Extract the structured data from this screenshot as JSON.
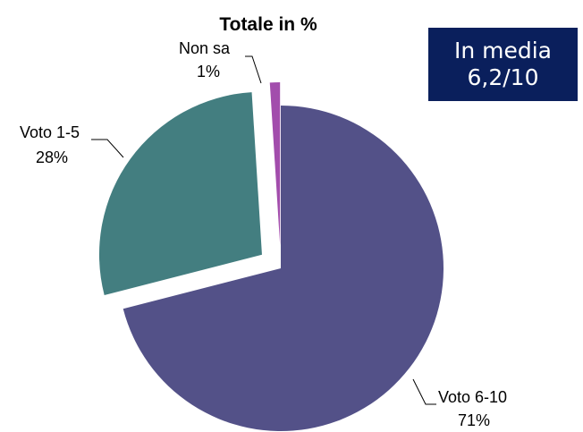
{
  "chart_data": {
    "type": "pie",
    "title": "Totale in %",
    "slices": [
      {
        "label": "Voto 6-10",
        "value": 71,
        "value_label": "71%",
        "color": "#535188",
        "exploded": false
      },
      {
        "label": "Voto 1-5",
        "value": 28,
        "value_label": "28%",
        "color": "#437e80",
        "exploded": true
      },
      {
        "label": "Non sa",
        "value": 1,
        "value_label": "1%",
        "color": "#a24dac",
        "exploded": true
      }
    ],
    "legend": "none"
  },
  "summary_box": {
    "line1": "In media",
    "line2": "6,2/10",
    "background": "#0a1f5c"
  }
}
